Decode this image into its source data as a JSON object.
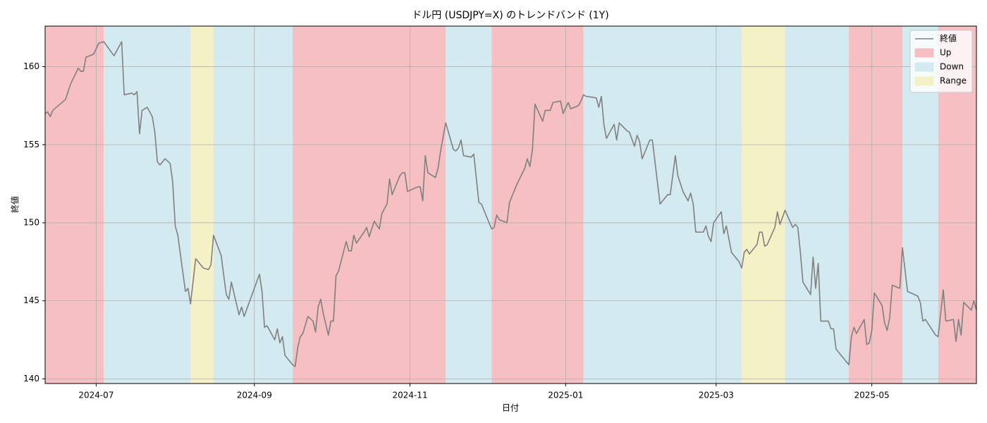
{
  "chart_data": {
    "type": "line",
    "title": "ドル円 (USDJPY=X) のトレンドバンド (1Y)",
    "x_label": "日付",
    "y_label": "終値",
    "xlim": [
      "2024-06-11",
      "2025-06-11"
    ],
    "ylim": [
      139.7,
      162.6
    ],
    "xticks": [
      {
        "value": "2024-07-01",
        "label": "2024-07"
      },
      {
        "value": "2024-09-01",
        "label": "2024-09"
      },
      {
        "value": "2024-11-01",
        "label": "2024-11"
      },
      {
        "value": "2025-01-01",
        "label": "2025-01"
      },
      {
        "value": "2025-03-01",
        "label": "2025-03"
      },
      {
        "value": "2025-05-01",
        "label": "2025-05"
      }
    ],
    "yticks": [
      140,
      145,
      150,
      155,
      160
    ],
    "grid": true,
    "legend_position": "upper right",
    "trends": [
      {
        "name": "Up",
        "color": "#f6bfc1"
      },
      {
        "name": "Down",
        "color": "#d3eaf0"
      },
      {
        "name": "Range",
        "color": "#f5f1c6"
      }
    ],
    "bands": [
      {
        "start": "2024-06-11",
        "end": "2024-07-04",
        "trend": "Up"
      },
      {
        "start": "2024-07-04",
        "end": "2024-08-07",
        "trend": "Down"
      },
      {
        "start": "2024-08-07",
        "end": "2024-08-16",
        "trend": "Range"
      },
      {
        "start": "2024-08-16",
        "end": "2024-09-16",
        "trend": "Down"
      },
      {
        "start": "2024-09-16",
        "end": "2024-11-15",
        "trend": "Up"
      },
      {
        "start": "2024-11-15",
        "end": "2024-12-03",
        "trend": "Down"
      },
      {
        "start": "2024-12-03",
        "end": "2025-01-08",
        "trend": "Up"
      },
      {
        "start": "2025-01-08",
        "end": "2025-03-11",
        "trend": "Down"
      },
      {
        "start": "2025-03-11",
        "end": "2025-03-28",
        "trend": "Range"
      },
      {
        "start": "2025-03-28",
        "end": "2025-04-22",
        "trend": "Down"
      },
      {
        "start": "2025-04-22",
        "end": "2025-05-13",
        "trend": "Up"
      },
      {
        "start": "2025-05-13",
        "end": "2025-05-27",
        "trend": "Down"
      },
      {
        "start": "2025-05-27",
        "end": "2025-06-11",
        "trend": "Up"
      }
    ],
    "x": [
      "2024-06-11",
      "2024-06-12",
      "2024-06-13",
      "2024-06-14",
      "2024-06-19",
      "2024-06-21",
      "2024-06-24",
      "2024-06-25",
      "2024-06-26",
      "2024-06-27",
      "2024-06-30",
      "2024-07-02",
      "2024-07-04",
      "2024-07-08",
      "2024-07-11",
      "2024-07-12",
      "2024-07-15",
      "2024-07-16",
      "2024-07-17",
      "2024-07-18",
      "2024-07-19",
      "2024-07-21",
      "2024-07-23",
      "2024-07-24",
      "2024-07-25",
      "2024-07-26",
      "2024-07-28",
      "2024-07-30",
      "2024-07-31",
      "2024-08-01",
      "2024-08-02",
      "2024-08-05",
      "2024-08-06",
      "2024-08-07",
      "2024-08-09",
      "2024-08-12",
      "2024-08-14",
      "2024-08-15",
      "2024-08-16",
      "2024-08-19",
      "2024-08-21",
      "2024-08-22",
      "2024-08-23",
      "2024-08-26",
      "2024-08-27",
      "2024-08-28",
      "2024-09-03",
      "2024-09-04",
      "2024-09-05",
      "2024-09-06",
      "2024-09-09",
      "2024-09-10",
      "2024-09-11",
      "2024-09-12",
      "2024-09-13",
      "2024-09-16",
      "2024-09-17",
      "2024-09-18",
      "2024-09-19",
      "2024-09-20",
      "2024-09-22",
      "2024-09-24",
      "2024-09-25",
      "2024-09-26",
      "2024-09-27",
      "2024-09-28",
      "2024-09-30",
      "2024-10-01",
      "2024-10-02",
      "2024-10-03",
      "2024-10-04",
      "2024-10-07",
      "2024-10-08",
      "2024-10-09",
      "2024-10-10",
      "2024-10-11",
      "2024-10-14",
      "2024-10-15",
      "2024-10-16",
      "2024-10-18",
      "2024-10-20",
      "2024-10-21",
      "2024-10-23",
      "2024-10-24",
      "2024-10-25",
      "2024-10-28",
      "2024-10-29",
      "2024-10-30",
      "2024-10-31",
      "2024-11-04",
      "2024-11-05",
      "2024-11-06",
      "2024-11-07",
      "2024-11-08",
      "2024-11-11",
      "2024-11-12",
      "2024-11-13",
      "2024-11-15",
      "2024-11-18",
      "2024-11-19",
      "2024-11-20",
      "2024-11-21",
      "2024-11-22",
      "2024-11-25",
      "2024-11-26",
      "2024-11-28",
      "2024-11-29",
      "2024-12-03",
      "2024-12-04",
      "2024-12-05",
      "2024-12-06",
      "2024-12-09",
      "2024-12-10",
      "2024-12-13",
      "2024-12-16",
      "2024-12-17",
      "2024-12-18",
      "2024-12-19",
      "2024-12-20",
      "2024-12-23",
      "2024-12-24",
      "2024-12-26",
      "2024-12-27",
      "2024-12-30",
      "2024-12-31",
      "2025-01-02",
      "2025-01-03",
      "2025-01-06",
      "2025-01-07",
      "2025-01-08",
      "2025-01-09",
      "2025-01-13",
      "2025-01-14",
      "2025-01-15",
      "2025-01-16",
      "2025-01-17",
      "2025-01-20",
      "2025-01-21",
      "2025-01-22",
      "2025-01-25",
      "2025-01-26",
      "2025-01-28",
      "2025-01-29",
      "2025-01-30",
      "2025-01-31",
      "2025-02-03",
      "2025-02-04",
      "2025-02-07",
      "2025-02-10",
      "2025-02-11",
      "2025-02-13",
      "2025-02-14",
      "2025-02-16",
      "2025-02-18",
      "2025-02-19",
      "2025-02-20",
      "2025-02-21",
      "2025-02-24",
      "2025-02-25",
      "2025-02-26",
      "2025-02-27",
      "2025-02-28",
      "2025-03-03",
      "2025-03-04",
      "2025-03-05",
      "2025-03-07",
      "2025-03-10",
      "2025-03-11",
      "2025-03-12",
      "2025-03-13",
      "2025-03-14",
      "2025-03-17",
      "2025-03-18",
      "2025-03-19",
      "2025-03-20",
      "2025-03-21",
      "2025-03-24",
      "2025-03-25",
      "2025-03-26",
      "2025-03-28",
      "2025-03-31",
      "2025-04-01",
      "2025-04-02",
      "2025-04-03",
      "2025-04-04",
      "2025-04-07",
      "2025-04-08",
      "2025-04-09",
      "2025-04-10",
      "2025-04-11",
      "2025-04-14",
      "2025-04-15",
      "2025-04-16",
      "2025-04-17",
      "2025-04-22",
      "2025-04-23",
      "2025-04-24",
      "2025-04-25",
      "2025-04-28",
      "2025-04-29",
      "2025-04-30",
      "2025-05-01",
      "2025-05-02",
      "2025-05-05",
      "2025-05-06",
      "2025-05-07",
      "2025-05-08",
      "2025-05-09",
      "2025-05-12",
      "2025-05-13",
      "2025-05-15",
      "2025-05-19",
      "2025-05-20",
      "2025-05-21",
      "2025-05-22",
      "2025-05-26",
      "2025-05-27",
      "2025-05-28",
      "2025-05-29",
      "2025-05-30",
      "2025-06-02",
      "2025-06-03",
      "2025-06-04",
      "2025-06-05",
      "2025-06-06",
      "2025-06-09",
      "2025-06-10",
      "2025-06-11"
    ],
    "series": [
      {
        "name": "終値",
        "color": "#808080",
        "values": [
          157.0,
          157.1,
          156.8,
          157.2,
          157.9,
          158.9,
          159.9,
          159.7,
          159.7,
          160.6,
          160.8,
          161.5,
          161.6,
          160.7,
          161.6,
          158.2,
          158.3,
          158.2,
          158.4,
          155.7,
          157.2,
          157.4,
          156.8,
          155.8,
          153.9,
          153.7,
          154.1,
          153.8,
          152.6,
          149.8,
          149.2,
          145.6,
          145.8,
          144.8,
          147.7,
          147.1,
          147.0,
          147.3,
          149.2,
          147.9,
          145.4,
          145.1,
          146.2,
          144.1,
          144.6,
          144.0,
          146.7,
          145.6,
          143.3,
          143.4,
          142.5,
          143.2,
          142.3,
          142.7,
          141.5,
          140.9,
          140.8,
          142.0,
          142.7,
          142.9,
          144.0,
          143.7,
          143.0,
          144.6,
          145.1,
          144.2,
          142.8,
          143.7,
          143.7,
          146.6,
          146.9,
          148.8,
          148.2,
          148.2,
          149.2,
          148.7,
          149.4,
          149.7,
          149.1,
          150.1,
          149.6,
          150.6,
          151.2,
          152.8,
          151.8,
          153.0,
          153.2,
          153.2,
          152.0,
          152.3,
          152.3,
          151.4,
          154.3,
          153.2,
          152.9,
          153.5,
          154.6,
          156.4,
          154.7,
          154.6,
          154.8,
          155.3,
          154.3,
          154.2,
          154.4,
          151.3,
          151.2,
          149.6,
          149.7,
          150.5,
          150.2,
          150.0,
          151.3,
          152.5,
          153.5,
          154.1,
          153.6,
          154.7,
          157.6,
          156.5,
          157.2,
          157.2,
          157.7,
          157.8,
          157.0,
          157.7,
          157.3,
          157.5,
          157.8,
          158.2,
          158.1,
          158.0,
          157.4,
          158.1,
          156.3,
          155.4,
          156.3,
          155.3,
          156.4,
          155.9,
          155.8,
          154.9,
          155.6,
          155.2,
          154.1,
          155.3,
          155.3,
          151.2,
          151.8,
          151.8,
          154.3,
          153.0,
          152.0,
          151.4,
          151.9,
          151.2,
          149.4,
          149.4,
          149.8,
          149.1,
          148.8,
          150.0,
          150.7,
          149.3,
          149.8,
          148.1,
          147.5,
          147.1,
          148.1,
          148.3,
          148.0,
          148.6,
          149.4,
          149.4,
          148.5,
          148.6,
          149.7,
          150.7,
          149.9,
          150.8,
          149.7,
          149.9,
          149.7,
          148.1,
          146.2,
          145.4,
          147.8,
          145.8,
          147.4,
          143.7,
          143.7,
          143.2,
          143.2,
          141.9,
          140.9,
          142.7,
          143.3,
          142.9,
          143.8,
          142.2,
          142.3,
          143.1,
          145.5,
          144.7,
          143.6,
          143.1,
          143.9,
          146.0,
          145.8,
          148.4,
          145.6,
          145.3,
          144.9,
          143.7,
          143.8,
          142.8,
          142.7,
          144.2,
          145.7,
          143.7,
          143.8,
          142.4,
          143.8,
          142.8,
          144.9,
          144.4,
          145.0,
          144.4
        ]
      }
    ]
  }
}
